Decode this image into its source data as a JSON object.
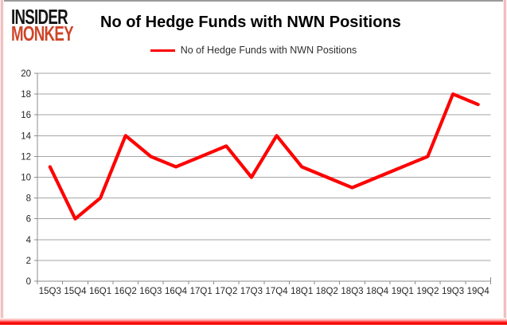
{
  "header": {
    "logo_line1": "INSIDER",
    "logo_line2": "MONKEY",
    "title": "No of Hedge Funds with NWN Positions"
  },
  "legend": {
    "label": "No of Hedge Funds with NWN Positions"
  },
  "colors": {
    "series_red": "#fe0000",
    "logo_red": "#cf4529",
    "gridline_gray": "#a6a6a6",
    "axis_gray": "#8c8c8c",
    "label_dark": "#262626"
  },
  "chart_data": {
    "type": "line",
    "title": "No of Hedge Funds with NWN Positions",
    "categories": [
      "15Q3",
      "15Q4",
      "16Q1",
      "16Q2",
      "16Q3",
      "16Q4",
      "17Q1",
      "17Q2",
      "17Q3",
      "17Q4",
      "18Q1",
      "18Q2",
      "18Q3",
      "18Q4",
      "19Q1",
      "19Q2",
      "19Q3",
      "19Q4"
    ],
    "series": [
      {
        "name": "No of Hedge Funds with NWN Positions",
        "values": [
          11,
          6,
          8,
          14,
          12,
          11,
          12,
          13,
          10,
          14,
          11,
          10,
          9,
          10,
          11,
          12,
          18,
          17
        ]
      }
    ],
    "xlabel": "",
    "ylabel": "",
    "ylim": [
      0,
      20
    ],
    "ytick_step": 2,
    "grid": true,
    "legend_position": "top"
  }
}
